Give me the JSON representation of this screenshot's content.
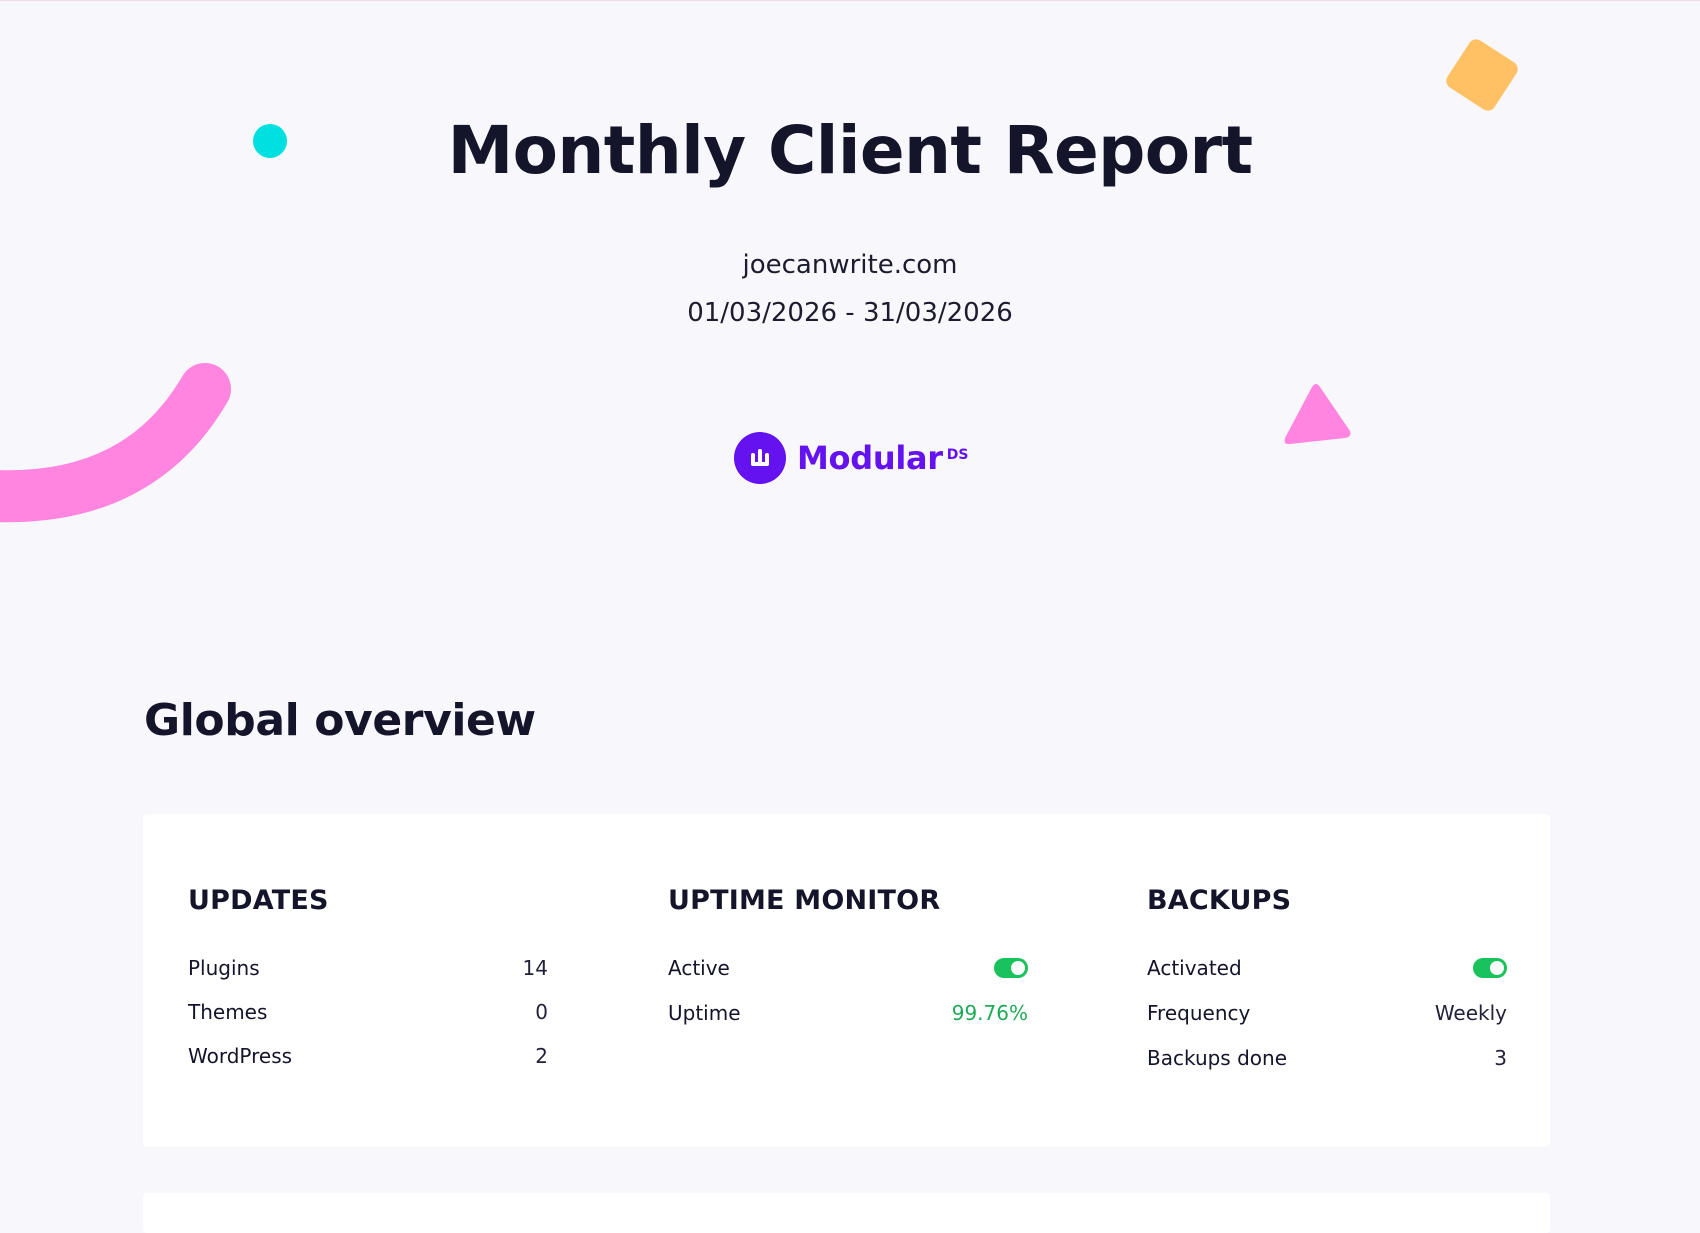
{
  "report": {
    "title": "Monthly Client Report",
    "site": "joecanwrite.com",
    "period": "01/03/2026 - 31/03/2026"
  },
  "brand": {
    "name": "Modular",
    "suffix": "DS",
    "color": "#6412f0",
    "icon": "modular-logo-icon"
  },
  "decorations": {
    "colors": {
      "cyan_dot": "#00e0e0",
      "orange_diamond": "#ffc163",
      "pink_arc": "#ff85e0",
      "pink_triangle": "#ff85e0"
    }
  },
  "overview": {
    "title": "Global overview",
    "updates": {
      "title": "UPDATES",
      "rows": [
        {
          "label": "Plugins",
          "value": "14"
        },
        {
          "label": "Themes",
          "value": "0"
        },
        {
          "label": "WordPress",
          "value": "2"
        }
      ]
    },
    "uptime": {
      "title": "UPTIME MONITOR",
      "active_label": "Active",
      "active_on": true,
      "uptime_label": "Uptime",
      "uptime_value": "99.76%"
    },
    "backups": {
      "title": "BACKUPS",
      "activated_label": "Activated",
      "activated_on": true,
      "frequency_label": "Frequency",
      "frequency_value": "Weekly",
      "done_label": "Backups done",
      "done_value": "3"
    }
  },
  "status_colors": {
    "toggle_on": "#19c25a",
    "positive_text": "#1faa57"
  }
}
